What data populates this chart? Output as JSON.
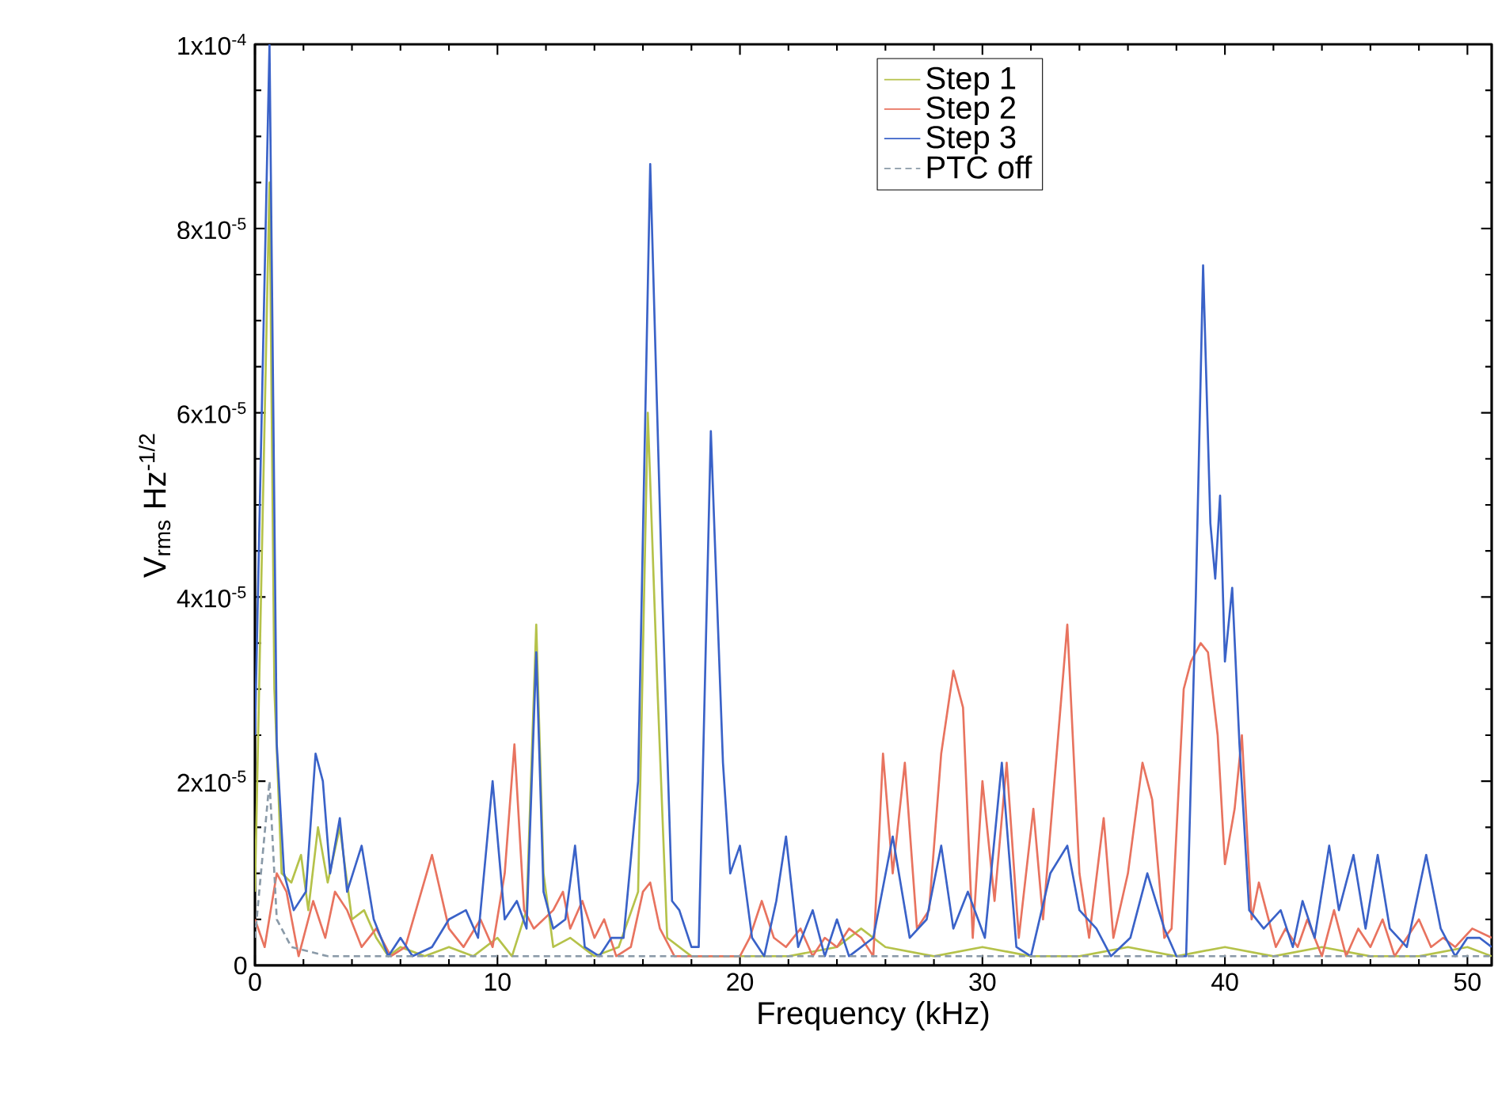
{
  "chart_data": {
    "type": "line",
    "xlabel": "Frequency (kHz)",
    "ylabel": "V$_{rms}$ Hz$^{-1/2}$",
    "xlim": [
      0,
      51
    ],
    "ylim": [
      0,
      0.0001
    ],
    "xticks": [
      0,
      10,
      20,
      30,
      40,
      50
    ],
    "yticks": [
      {
        "value": 0,
        "label": "0"
      },
      {
        "value": 2e-05,
        "label": "2x10$^{-5}$"
      },
      {
        "value": 4e-05,
        "label": "4x10$^{-5}$"
      },
      {
        "value": 6e-05,
        "label": "6x10$^{-5}$"
      },
      {
        "value": 8e-05,
        "label": "8x10$^{-5}$"
      },
      {
        "value": 0.0001,
        "label": "1x10$^{-4}$"
      }
    ],
    "grid": false,
    "legend": "top",
    "marker": "none",
    "series": [
      {
        "name": "Step 1",
        "color": "#b5c24a",
        "line_style": "solid",
        "x": [
          0,
          0.6,
          0.8,
          1.1,
          1.5,
          1.9,
          2.2,
          2.6,
          3,
          3.5,
          4,
          4.5,
          5,
          5.5,
          6,
          7,
          8,
          9,
          10,
          10.6,
          11.2,
          11.6,
          11.9,
          12.3,
          13,
          14,
          15,
          15.8,
          16.2,
          16.6,
          17,
          18,
          19,
          20,
          22,
          24,
          25,
          26,
          28,
          30,
          32,
          34,
          36,
          38,
          40,
          42,
          44,
          46,
          48,
          50,
          51
        ],
        "values": [
          8e-06,
          8.5e-05,
          3e-05,
          1e-05,
          9e-06,
          1.2e-05,
          6e-06,
          1.5e-05,
          9e-06,
          1.5e-05,
          5e-06,
          6e-06,
          3e-06,
          1e-06,
          2e-06,
          1e-06,
          2e-06,
          1e-06,
          3e-06,
          1e-06,
          6e-06,
          3.7e-05,
          1e-05,
          2e-06,
          3e-06,
          1e-06,
          2e-06,
          8e-06,
          6e-05,
          3e-05,
          3e-06,
          1e-06,
          1e-06,
          1e-06,
          1e-06,
          2e-06,
          4e-06,
          2e-06,
          1e-06,
          2e-06,
          1e-06,
          1e-06,
          2e-06,
          1e-06,
          2e-06,
          1e-06,
          2e-06,
          1e-06,
          1e-06,
          2e-06,
          1e-06
        ]
      },
      {
        "name": "Step 2",
        "color": "#e8735f",
        "line_style": "solid",
        "x": [
          0,
          0.4,
          0.9,
          1.3,
          1.8,
          2.4,
          2.9,
          3.3,
          3.8,
          4.4,
          5,
          5.6,
          6.2,
          7.3,
          8,
          8.6,
          9.3,
          9.8,
          10.3,
          10.7,
          11.1,
          11.5,
          12.3,
          12.7,
          13,
          13.5,
          14,
          14.4,
          14.9,
          15.5,
          16,
          16.3,
          16.7,
          17.3,
          18,
          18.6,
          19.3,
          20,
          20.4,
          20.9,
          21.4,
          21.9,
          22.5,
          23,
          23.5,
          24,
          24.5,
          25,
          25.5,
          25.9,
          26.3,
          26.8,
          27.3,
          27.8,
          28.3,
          28.8,
          29.2,
          29.6,
          30,
          30.5,
          31,
          31.5,
          32.1,
          32.5,
          33.5,
          34,
          34.4,
          35,
          35.4,
          36,
          36.6,
          37,
          37.5,
          37.8,
          38.3,
          38.6,
          39,
          39.3,
          39.7,
          40,
          40.4,
          40.7,
          41.1,
          41.4,
          41.7,
          42.1,
          42.5,
          43,
          43.4,
          44,
          44.5,
          45,
          45.5,
          46,
          46.5,
          47,
          48,
          48.5,
          49,
          49.5,
          50.2,
          51
        ],
        "values": [
          5e-06,
          2e-06,
          1e-05,
          8e-06,
          1e-06,
          7e-06,
          3e-06,
          8e-06,
          6e-06,
          2e-06,
          4e-06,
          1e-06,
          2e-06,
          1.2e-05,
          4e-06,
          2e-06,
          5e-06,
          2e-06,
          1e-05,
          2.4e-05,
          6e-06,
          4e-06,
          6e-06,
          8e-06,
          4e-06,
          7e-06,
          3e-06,
          5e-06,
          1e-06,
          2e-06,
          8e-06,
          9e-06,
          4e-06,
          1e-06,
          1e-06,
          1e-06,
          1e-06,
          1e-06,
          3e-06,
          7e-06,
          3e-06,
          2e-06,
          4e-06,
          1e-06,
          3e-06,
          2e-06,
          4e-06,
          3e-06,
          1e-06,
          2.3e-05,
          1e-05,
          2.2e-05,
          4e-06,
          6e-06,
          2.3e-05,
          3.2e-05,
          2.8e-05,
          3e-06,
          2e-05,
          7e-06,
          2.2e-05,
          3e-06,
          1.7e-05,
          5e-06,
          3.7e-05,
          1e-05,
          3e-06,
          1.6e-05,
          3e-06,
          1e-05,
          2.2e-05,
          1.8e-05,
          3e-06,
          4e-06,
          3e-05,
          3.3e-05,
          3.5e-05,
          3.4e-05,
          2.5e-05,
          1.1e-05,
          1.7e-05,
          2.5e-05,
          5e-06,
          9e-06,
          6e-06,
          2e-06,
          4e-06,
          2e-06,
          5e-06,
          1e-06,
          6e-06,
          1e-06,
          4e-06,
          2e-06,
          5e-06,
          1e-06,
          5e-06,
          2e-06,
          3e-06,
          2e-06,
          4e-06,
          3e-06
        ]
      },
      {
        "name": "Step 3",
        "color": "#3a62c8",
        "line_style": "solid",
        "x": [
          0,
          0.6,
          0.9,
          1.2,
          1.6,
          2.1,
          2.5,
          2.8,
          3.1,
          3.5,
          3.8,
          4.4,
          4.9,
          5.5,
          6,
          6.5,
          7.3,
          8,
          8.7,
          9.2,
          9.8,
          10.3,
          10.8,
          11.2,
          11.6,
          11.9,
          12.3,
          12.8,
          13.2,
          13.6,
          14.2,
          14.7,
          15.2,
          15.8,
          16.3,
          16.8,
          17.2,
          17.5,
          18,
          18.3,
          18.8,
          19.3,
          19.6,
          20,
          20.5,
          21,
          21.5,
          21.9,
          22.4,
          23,
          23.5,
          24,
          24.5,
          25,
          25.5,
          26.3,
          27,
          27.7,
          28.3,
          28.8,
          29.4,
          30.1,
          30.8,
          31.4,
          32,
          32.8,
          33.5,
          34,
          34.7,
          35.3,
          36.1,
          36.8,
          37.5,
          38,
          38.4,
          38.8,
          39.1,
          39.4,
          39.6,
          39.8,
          40,
          40.3,
          40.6,
          41,
          41.6,
          42.3,
          42.8,
          43.2,
          43.7,
          44.3,
          44.7,
          45.3,
          45.8,
          46.3,
          46.8,
          47.5,
          48.3,
          48.9,
          49.5,
          50,
          50.5,
          51
        ],
        "values": [
          2.5e-05,
          0.0001,
          2.4e-05,
          1e-05,
          6e-06,
          8e-06,
          2.3e-05,
          2e-05,
          1e-05,
          1.6e-05,
          8e-06,
          1.3e-05,
          5e-06,
          1e-06,
          3e-06,
          1e-06,
          2e-06,
          5e-06,
          6e-06,
          3e-06,
          2e-05,
          5e-06,
          7e-06,
          4e-06,
          3.4e-05,
          8e-06,
          4e-06,
          5e-06,
          1.3e-05,
          2e-06,
          1e-06,
          3e-06,
          3e-06,
          2e-05,
          8.7e-05,
          4e-05,
          7e-06,
          6e-06,
          2e-06,
          2e-06,
          5.8e-05,
          2.2e-05,
          1e-05,
          1.3e-05,
          3e-06,
          1e-06,
          7e-06,
          1.4e-05,
          2e-06,
          6e-06,
          1e-06,
          5e-06,
          1e-06,
          2e-06,
          3e-06,
          1.4e-05,
          3e-06,
          5e-06,
          1.3e-05,
          4e-06,
          8e-06,
          3e-06,
          2.2e-05,
          2e-06,
          1e-06,
          1e-05,
          1.3e-05,
          6e-06,
          4e-06,
          1e-06,
          3e-06,
          1e-05,
          4e-06,
          1e-06,
          1e-06,
          4e-05,
          7.6e-05,
          4.8e-05,
          4.2e-05,
          5.1e-05,
          3.3e-05,
          4.1e-05,
          2.4e-05,
          6e-06,
          4e-06,
          6e-06,
          2e-06,
          7e-06,
          3e-06,
          1.3e-05,
          6e-06,
          1.2e-05,
          4e-06,
          1.2e-05,
          4e-06,
          2e-06,
          1.2e-05,
          4e-06,
          1e-06,
          3e-06,
          3e-06,
          2e-06
        ]
      },
      {
        "name": "PTC off",
        "color": "#8a9aa8",
        "line_style": "dashed",
        "x": [
          0,
          0.6,
          0.9,
          1.5,
          3,
          6,
          10,
          16,
          20,
          25,
          30,
          35,
          40,
          45,
          51
        ],
        "values": [
          3e-06,
          2e-05,
          5e-06,
          2e-06,
          1e-06,
          1e-06,
          1e-06,
          1e-06,
          1e-06,
          1e-06,
          1e-06,
          1e-06,
          1e-06,
          1e-06,
          1e-06
        ]
      }
    ]
  }
}
